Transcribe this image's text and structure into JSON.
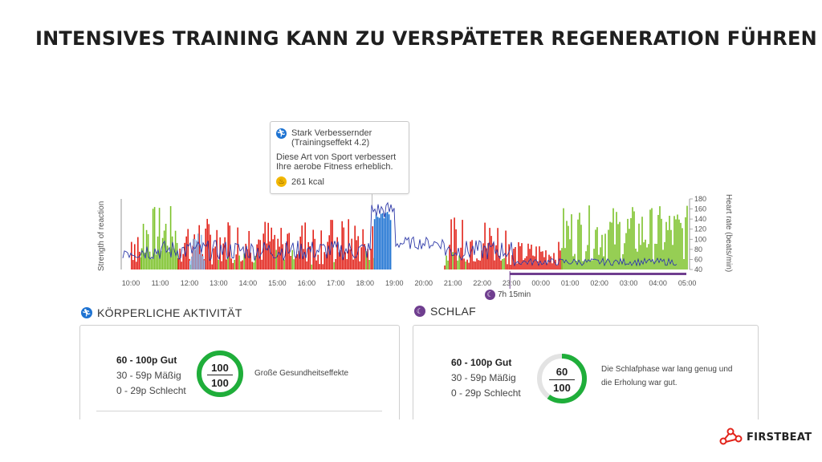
{
  "title": "INTENSIVES TRAINING KANN ZU VERSPÄTETER REGENERATION FÜHREN",
  "tooltip": {
    "title": "Stark Verbessernder (Trainingseffekt 4.2)",
    "description": "Diese Art von Sport verbessert Ihre aerobe Fitness erheblich.",
    "kcal": "261 kcal",
    "icon": "running-icon",
    "kcal_icon": "flame-icon"
  },
  "chart_data": {
    "type": "bar",
    "ylabel_left": "Strength of reaction",
    "ylabel_right": "Heart rate (beats/min)",
    "x_ticks": [
      "10:00",
      "11:00",
      "12:00",
      "13:00",
      "14:00",
      "15:00",
      "16:00",
      "17:00",
      "18:00",
      "19:00",
      "20:00",
      "21:00",
      "22:00",
      "23:00",
      "00:00",
      "01:00",
      "02:00",
      "03:00",
      "04:00",
      "05:00"
    ],
    "hr_ticks": [
      "180",
      "160",
      "140",
      "120",
      "100",
      "80",
      "60",
      "40"
    ],
    "hr_ylim": [
      40,
      180
    ],
    "legend_colors": {
      "recovery": "#7cc22a",
      "stress": "#e2231a",
      "exercise": "#1e73d2",
      "heart_rate": "#2f3aa8",
      "sleep": "#6f3e8f"
    },
    "sleep_duration": "7h 15min"
  },
  "activity": {
    "heading": "KÖRPERLICHE AKTIVITÄT",
    "legend": [
      "60 - 100p Gut",
      "30 - 59p Mäßig",
      "0 - 29p Schlecht"
    ],
    "score": "100",
    "max": "100",
    "note": "Große Gesundheitseffekte",
    "ring_color": "#1fae3a"
  },
  "sleep": {
    "heading": "SCHLAF",
    "legend": [
      "60 - 100p Gut",
      "30 - 59p Mäßig",
      "0 - 29p Schlecht"
    ],
    "score": "60",
    "max": "100",
    "note": "Die Schlafphase war lang genug und die Erholung war gut.",
    "ring_color": "#1fae3a"
  },
  "logo": {
    "text": "FIRSTBEAT"
  }
}
